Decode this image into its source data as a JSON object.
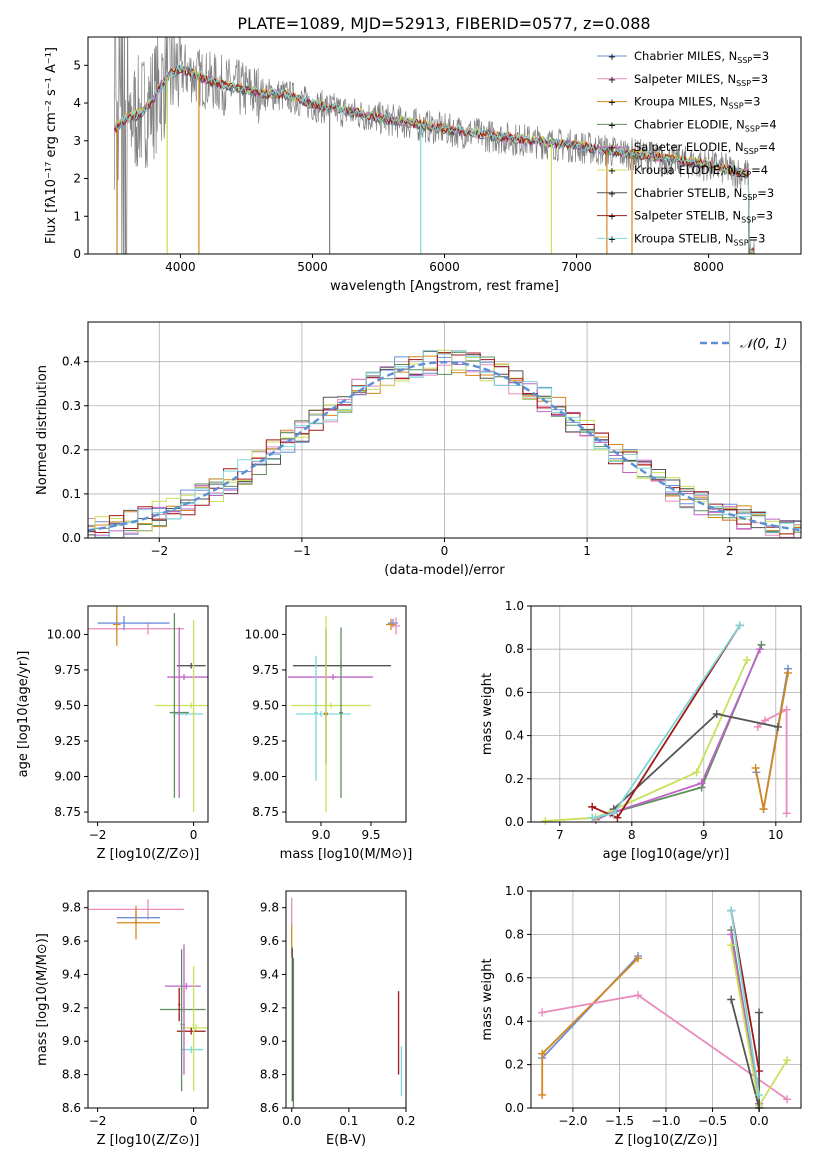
{
  "figure": {
    "title": "PLATE=1089, MJD=52913, FIBERID=0577, z=0.088"
  },
  "colors": {
    "chabrier_miles": "#6f8fd8",
    "salpeter_miles": "#e88bbd",
    "kroupa_miles": "#d4871c",
    "chabrier_elodie": "#5d8f5d",
    "salpeter_elodie": "#c064c8",
    "kroupa_elodie": "#c8e05a",
    "chabrier_stelib": "#555555",
    "salpeter_stelib": "#a01818",
    "kroupa_stelib": "#7fd6d9",
    "data_spectrum": "#808080",
    "normal_curve": "#5b8fd6",
    "grid": "#b0b0b0"
  },
  "legend_labels": [
    {
      "main": "Chabrier MILES, N",
      "sub": "SSP",
      "tail": "=3"
    },
    {
      "main": "Salpeter MILES, N",
      "sub": "SSP",
      "tail": "=3"
    },
    {
      "main": "Kroupa MILES, N",
      "sub": "SSP",
      "tail": "=3"
    },
    {
      "main": "Chabrier ELODIE, N",
      "sub": "SSP",
      "tail": "=4"
    },
    {
      "main": "Salpeter ELODIE, N",
      "sub": "SSP",
      "tail": "=4"
    },
    {
      "main": "Kroupa ELODIE, N",
      "sub": "SSP",
      "tail": "=4"
    },
    {
      "main": "Chabrier STELIB, N",
      "sub": "SSP",
      "tail": "=3"
    },
    {
      "main": "Salpeter STELIB, N",
      "sub": "SSP",
      "tail": "=3"
    },
    {
      "main": "Kroupa STELIB, N",
      "sub": "SSP",
      "tail": "=3"
    }
  ],
  "chart_data": [
    {
      "id": "spectrum",
      "type": "line",
      "xlabel": "wavelength [Angstrom, rest frame]",
      "ylabel": "Flux [fλ10⁻¹⁷ erg cm⁻² s⁻¹ A⁻¹]",
      "xlim": [
        3300,
        8700
      ],
      "ylim": [
        0,
        5.75
      ],
      "xticks": [
        4000,
        5000,
        6000,
        7000,
        8000
      ],
      "yticks": [
        0,
        1,
        2,
        3,
        4,
        5
      ],
      "model_continuum": {
        "x": [
          3500,
          3600,
          3700,
          3800,
          3900,
          4000,
          4200,
          4400,
          4600,
          4800,
          5000,
          5500,
          6000,
          6500,
          7000,
          7500,
          8000,
          8300
        ],
        "y": [
          3.3,
          3.6,
          3.7,
          4.1,
          4.7,
          4.9,
          4.6,
          4.4,
          4.25,
          4.2,
          3.95,
          3.6,
          3.3,
          3.05,
          2.85,
          2.6,
          2.35,
          2.1
        ]
      },
      "legend_position": "top-right"
    },
    {
      "id": "residual-histogram",
      "type": "histogram",
      "xlabel": "(data-model)/error",
      "ylabel": "Normed distribution",
      "xlim": [
        -2.5,
        2.5
      ],
      "ylim": [
        0,
        0.49
      ],
      "xticks": [
        -2,
        -1,
        0,
        1,
        2
      ],
      "yticks": [
        0.0,
        0.1,
        0.2,
        0.3,
        0.4
      ],
      "bin_width": 0.1,
      "legend": "𝒩(0, 1)",
      "legend_position": "top-right",
      "grid": true
    },
    {
      "id": "age-vs-Z",
      "type": "errorbar",
      "xlabel": "Z [log10(Z/Z⊙)]",
      "ylabel": "age  [log10(age/yr)]",
      "xlim": [
        -2.2,
        0.3
      ],
      "ylim": [
        8.68,
        10.2
      ],
      "xticks": [
        -2,
        0
      ],
      "yticks": [
        8.75,
        9.0,
        9.25,
        9.5,
        9.75,
        10.0
      ],
      "points": [
        {
          "series": "salpeter_miles",
          "x": -0.95,
          "xerr": [
            1.3,
            0.75
          ],
          "y": 10.04,
          "yerr": 0.04
        },
        {
          "series": "kroupa_miles",
          "x": -1.6,
          "xerr": 0.08,
          "y": 10.07,
          "yerr": 0.15
        },
        {
          "series": "chabrier_miles",
          "x": -1.45,
          "xerr": [
            0.55,
            0.95
          ],
          "y": 10.08,
          "yerr": 0.05
        },
        {
          "series": "chabrier_stelib",
          "x": -0.05,
          "xerr": [
            0.3,
            0.3
          ],
          "y": 9.78,
          "yerr": 0.02
        },
        {
          "series": "salpeter_elodie",
          "x": -0.2,
          "xerr": [
            0.35,
            0.55
          ],
          "y": 9.7,
          "yerr": 0.02
        },
        {
          "series": "kroupa_elodie",
          "x": -0.05,
          "xerr": [
            0.75,
            0.9
          ],
          "y": 9.5,
          "yerr": 0.02
        },
        {
          "series": "kroupa_stelib",
          "x": -0.15,
          "xerr": [
            0.25,
            0.35
          ],
          "y": 9.44,
          "yerr": 0.01
        },
        {
          "series": "chabrier_elodie",
          "x": -0.4,
          "xerr": [
            0.1,
            0.3
          ],
          "y": 9.45,
          "yerr": [
            0.6,
            0.7
          ]
        },
        {
          "series": "salpeter_elodie",
          "x": -0.3,
          "xerr": 0.02,
          "y": 9.45,
          "yerr": [
            0.6,
            0.6
          ]
        },
        {
          "series": "kroupa_elodie",
          "x": 0.0,
          "xerr": 0.02,
          "y": 9.45,
          "yerr": [
            0.7,
            0.65
          ]
        }
      ]
    },
    {
      "id": "age-vs-mass",
      "type": "errorbar",
      "xlabel": "mass [log10(M/M⊙)]",
      "ylabel": "",
      "xlim": [
        8.65,
        9.85
      ],
      "ylim": [
        8.68,
        10.2
      ],
      "xticks": [
        9.0,
        9.5
      ],
      "yticks": [
        8.75,
        9.0,
        9.25,
        9.5,
        9.75,
        10.0
      ],
      "points": [
        {
          "series": "chabrier_stelib",
          "x": 9.2,
          "xerr": [
            0.48,
            0.5
          ],
          "y": 9.78,
          "yerr": 0.02
        },
        {
          "series": "salpeter_elodie",
          "x": 9.12,
          "xerr": [
            0.45,
            0.4
          ],
          "y": 9.7,
          "yerr": 0.02
        },
        {
          "series": "kroupa_elodie",
          "x": 9.1,
          "xerr": [
            0.4,
            0.4
          ],
          "y": 9.5,
          "yerr": 0.02
        },
        {
          "series": "kroupa_stelib",
          "x": 9.0,
          "xerr": [
            0.25,
            0.3
          ],
          "y": 9.44,
          "yerr": 0.02
        },
        {
          "series": "salpeter_stelib",
          "x": 9.05,
          "xerr": 0.02,
          "y": 9.44,
          "yerr": [
            0.35,
            0.6
          ]
        },
        {
          "series": "chabrier_elodie",
          "x": 9.2,
          "xerr": 0.02,
          "y": 9.45,
          "yerr": [
            0.6,
            0.6
          ]
        },
        {
          "series": "kroupa_elodie",
          "x": 9.05,
          "xerr": 0.02,
          "y": 9.45,
          "yerr": [
            0.7,
            0.68
          ]
        },
        {
          "series": "kroupa_stelib",
          "x": 8.95,
          "xerr": 0.02,
          "y": 9.45,
          "yerr": [
            0.48,
            0.4
          ]
        },
        {
          "series": "chabrier_miles",
          "x": 9.72,
          "xerr": [
            0.05,
            0.05
          ],
          "y": 10.08,
          "yerr": 0.03
        },
        {
          "series": "kroupa_miles",
          "x": 9.7,
          "xerr": 0.05,
          "y": 10.07,
          "yerr": 0.04
        },
        {
          "series": "salpeter_miles",
          "x": 9.75,
          "xerr": 0.04,
          "y": 10.06,
          "yerr": 0.06
        }
      ]
    },
    {
      "id": "massweight-vs-age",
      "type": "line",
      "xlabel": "age  [log10(age/yr)]",
      "ylabel": "mass weight",
      "xlim": [
        6.6,
        10.35
      ],
      "ylim": [
        0,
        1.0
      ],
      "xticks": [
        7,
        8,
        9,
        10
      ],
      "yticks": [
        0.0,
        0.2,
        0.4,
        0.6,
        0.8,
        1.0
      ],
      "grid": true,
      "series": [
        {
          "name": "chabrier_miles",
          "x": [
            9.73,
            9.83,
            10.17
          ],
          "y": [
            0.23,
            0.06,
            0.71
          ]
        },
        {
          "name": "salpeter_miles",
          "x": [
            9.75,
            9.85,
            10.15,
            10.15
          ],
          "y": [
            0.44,
            0.47,
            0.52,
            0.04
          ]
        },
        {
          "name": "kroupa_miles",
          "x": [
            9.72,
            9.83,
            10.17
          ],
          "y": [
            0.25,
            0.06,
            0.69
          ]
        },
        {
          "name": "chabrier_elodie",
          "x": [
            7.5,
            7.7,
            8.97,
            9.8
          ],
          "y": [
            0.01,
            0.04,
            0.16,
            0.82
          ]
        },
        {
          "name": "salpeter_elodie",
          "x": [
            7.5,
            7.7,
            8.97,
            9.78
          ],
          "y": [
            0.01,
            0.04,
            0.18,
            0.8
          ]
        },
        {
          "name": "kroupa_elodie",
          "x": [
            6.8,
            7.5,
            8.9,
            9.6
          ],
          "y": [
            0.005,
            0.02,
            0.23,
            0.75
          ]
        },
        {
          "name": "chabrier_stelib",
          "x": [
            7.75,
            9.18,
            10.03
          ],
          "y": [
            0.06,
            0.5,
            0.44
          ]
        },
        {
          "name": "salpeter_stelib",
          "x": [
            7.45,
            7.8,
            9.5
          ],
          "y": [
            0.07,
            0.02,
            0.91
          ]
        },
        {
          "name": "kroupa_stelib",
          "x": [
            7.45,
            7.75,
            9.5
          ],
          "y": [
            0.02,
            0.04,
            0.91
          ]
        }
      ]
    },
    {
      "id": "mass-vs-Z",
      "type": "errorbar",
      "xlabel": "Z [log10(Z/Z⊙)]",
      "ylabel": "mass [log10(M/M⊙)]",
      "xlim": [
        -2.2,
        0.3
      ],
      "ylim": [
        8.6,
        9.9
      ],
      "xticks": [
        -2,
        0
      ],
      "yticks": [
        8.6,
        8.8,
        9.0,
        9.2,
        9.4,
        9.6,
        9.8
      ],
      "points": [
        {
          "series": "salpeter_miles",
          "x": -0.95,
          "xerr": [
            1.3,
            0.75
          ],
          "y": 9.79,
          "yerr": 0.06
        },
        {
          "series": "chabrier_miles",
          "x": -1.2,
          "xerr": [
            0.4,
            0.5
          ],
          "y": 9.74,
          "yerr": 0.04
        },
        {
          "series": "kroupa_miles",
          "x": -1.2,
          "xerr": [
            0.4,
            0.5
          ],
          "y": 9.71,
          "yerr": 0.1
        },
        {
          "series": "salpeter_elodie",
          "x": -0.15,
          "xerr": [
            0.45,
            0.3
          ],
          "y": 9.33,
          "yerr": 0.02
        },
        {
          "series": "chabrier_elodie",
          "x": -0.2,
          "xerr": [
            0.5,
            0.45
          ],
          "y": 9.19,
          "yerr": 0.02
        },
        {
          "series": "kroupa_elodie",
          "x": 0.05,
          "xerr": [
            0.3,
            0.25
          ],
          "y": 9.08,
          "yerr": 0.02
        },
        {
          "series": "salpeter_stelib",
          "x": -0.05,
          "xerr": [
            0.3,
            0.3
          ],
          "y": 9.06,
          "yerr": 0.02
        },
        {
          "series": "kroupa_stelib",
          "x": -0.05,
          "xerr": [
            0.2,
            0.25
          ],
          "y": 8.95,
          "yerr": 0.02
        },
        {
          "series": "chabrier_elodie",
          "x": -0.25,
          "xerr": 0.02,
          "y": 9.1,
          "yerr": [
            0.4,
            0.45
          ]
        },
        {
          "series": "salpeter_elodie",
          "x": -0.2,
          "xerr": 0.02,
          "y": 9.1,
          "yerr": [
            0.3,
            0.48
          ]
        },
        {
          "series": "kroupa_elodie",
          "x": 0.0,
          "xerr": 0.02,
          "y": 9.1,
          "yerr": [
            0.4,
            0.35
          ]
        },
        {
          "series": "salpeter_stelib",
          "x": -0.3,
          "xerr": 0.02,
          "y": 9.22,
          "yerr": 0.1
        }
      ]
    },
    {
      "id": "mass-vs-EBV",
      "type": "errorbar",
      "xlabel": "E(B-V)",
      "ylabel": "",
      "xlim": [
        -0.01,
        0.2
      ],
      "ylim": [
        8.6,
        9.9
      ],
      "xticks": [
        0.0,
        0.1,
        0.2
      ],
      "yticks": [
        8.6,
        8.8,
        9.0,
        9.2,
        9.4,
        9.6,
        9.8
      ],
      "points": [
        {
          "series": "salpeter_miles",
          "x": 0.0,
          "xerr": 0.0,
          "y": 9.78,
          "yerr": 0.08
        },
        {
          "series": "kroupa_miles",
          "x": 0.0,
          "xerr": 0.0,
          "y": 9.6,
          "yerr": 0.1
        },
        {
          "series": "chabrier_stelib",
          "x": 0.001,
          "xerr": 0.0,
          "y": 9.1,
          "yerr": 0.46
        },
        {
          "series": "chabrier_elodie",
          "x": 0.003,
          "xerr": 0.0,
          "y": 9.05,
          "yerr": 0.45
        },
        {
          "series": "salpeter_stelib",
          "x": 0.187,
          "xerr": 0.0,
          "y": 9.05,
          "yerr": 0.25
        },
        {
          "series": "kroupa_stelib",
          "x": 0.192,
          "xerr": 0.0,
          "y": 8.82,
          "yerr": 0.15
        }
      ]
    },
    {
      "id": "massweight-vs-Z",
      "type": "line",
      "xlabel": "Z [log10(Z/Z⊙)]",
      "ylabel": "mass weight",
      "xlim": [
        -2.45,
        0.45
      ],
      "ylim": [
        0,
        1.0
      ],
      "xticks": [
        -2.0,
        -1.5,
        -1.0,
        -0.5,
        0.0
      ],
      "yticks": [
        0.0,
        0.2,
        0.4,
        0.6,
        0.8,
        1.0
      ],
      "grid": true,
      "series": [
        {
          "name": "chabrier_miles",
          "x": [
            -2.33,
            -1.3
          ],
          "y": [
            0.23,
            0.7
          ]
        },
        {
          "name": "kroupa_miles",
          "x": [
            -2.33,
            -2.33,
            -1.3
          ],
          "y": [
            0.06,
            0.25,
            0.69
          ]
        },
        {
          "name": "salpeter_miles",
          "x": [
            -2.33,
            -1.3,
            0.3
          ],
          "y": [
            0.44,
            0.52,
            0.04
          ]
        },
        {
          "name": "chabrier_elodie",
          "x": [
            -0.3,
            0.0
          ],
          "y": [
            0.82,
            0.02
          ]
        },
        {
          "name": "salpeter_elodie",
          "x": [
            -0.3,
            0.0
          ],
          "y": [
            0.8,
            0.02
          ]
        },
        {
          "name": "kroupa_elodie",
          "x": [
            -0.3,
            0.0,
            0.3
          ],
          "y": [
            0.75,
            0.01,
            0.22
          ]
        },
        {
          "name": "chabrier_stelib",
          "x": [
            -0.3,
            0.0,
            0.0
          ],
          "y": [
            0.5,
            0.0,
            0.44
          ]
        },
        {
          "name": "salpeter_stelib",
          "x": [
            -0.3,
            0.0
          ],
          "y": [
            0.91,
            0.17
          ]
        },
        {
          "name": "kroupa_stelib",
          "x": [
            -0.3,
            0.0
          ],
          "y": [
            0.91,
            0.06
          ]
        }
      ]
    }
  ]
}
